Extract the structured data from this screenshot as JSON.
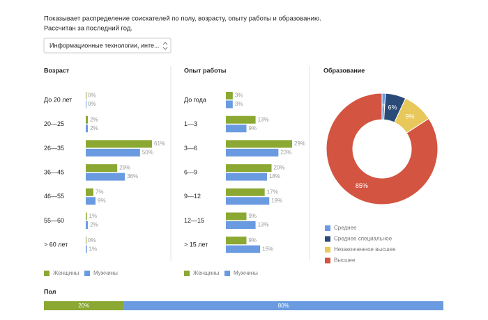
{
  "description": [
    "Показывает распределение соискателей по полу, возрасту, опыту работы и образованию.",
    "Рассчитан за последний год."
  ],
  "dropdown": "Информационные технологии, инте...",
  "chart_data": [
    {
      "type": "hbar",
      "title": "Возраст",
      "categories": [
        "До 20 лет",
        "20—25",
        "26—35",
        "36—45",
        "46—55",
        "55—60",
        "> 60 лет"
      ],
      "series": [
        {
          "name": "Женщины",
          "color": "#8aa832",
          "values": [
            0,
            2,
            61,
            29,
            7,
            1,
            0
          ],
          "value_labels": [
            "0%",
            "2%",
            "61%",
            "29%",
            "7%",
            "1%",
            "0%"
          ]
        },
        {
          "name": "Мужчины",
          "color": "#6a9be0",
          "values": [
            0,
            2,
            50,
            36,
            9,
            2,
            1
          ],
          "value_labels": [
            "0%",
            "2%",
            "50%",
            "36%",
            "9%",
            "2%",
            "1%"
          ]
        }
      ]
    },
    {
      "type": "hbar",
      "title": "Опыт работы",
      "categories": [
        "До года",
        "1—3",
        "3—6",
        "6—9",
        "9—12",
        "12—15",
        "> 15 лет"
      ],
      "series": [
        {
          "name": "Женщины",
          "color": "#8aa832",
          "values": [
            3,
            13,
            29,
            20,
            17,
            9,
            9
          ],
          "value_labels": [
            "3%",
            "13%",
            "29%",
            "20%",
            "17%",
            "9%",
            "9%"
          ]
        },
        {
          "name": "Мужчины",
          "color": "#6a9be0",
          "values": [
            3,
            9,
            23,
            18,
            19,
            13,
            15
          ],
          "value_labels": [
            "3%",
            "9%",
            "23%",
            "18%",
            "19%",
            "13%",
            "15%"
          ]
        }
      ]
    },
    {
      "type": "donut",
      "title": "Образование",
      "categories": [
        "Среднее",
        "Среднее специальное",
        "Незаконченное высшее",
        "Высшее"
      ],
      "values": [
        1,
        6,
        9,
        85
      ],
      "value_labels": [
        "1%",
        "6%",
        "9%",
        "85%"
      ],
      "colors": [
        "#6a9be0",
        "#2a4a78",
        "#e8c85a",
        "#d35440"
      ]
    },
    {
      "type": "stacked",
      "title": "Пол",
      "values": [
        20,
        80
      ],
      "value_labels": [
        "20%",
        "80%"
      ],
      "colors": [
        "#8aa832",
        "#6a9be0"
      ]
    }
  ]
}
